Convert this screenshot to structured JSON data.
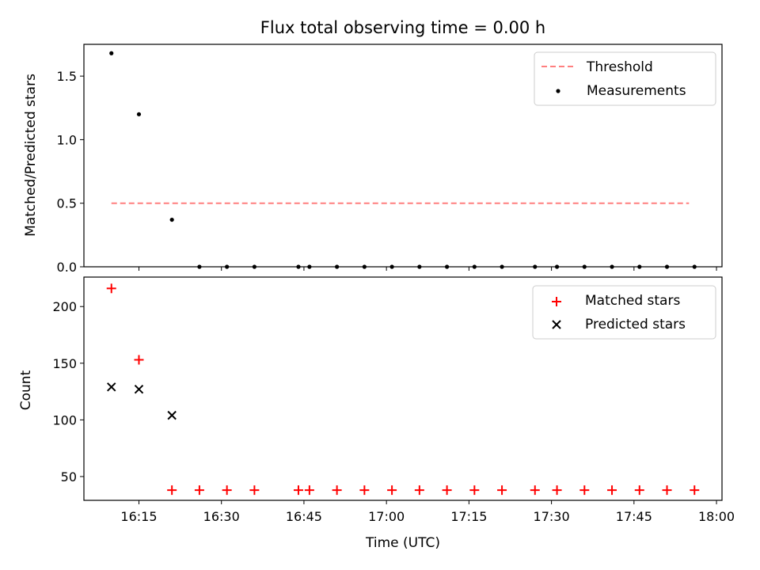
{
  "chart_data": [
    {
      "type": "scatter",
      "title": "Flux total observing time = 0.00 h",
      "ylabel": "Matched/Predicted stars",
      "xlabel": "",
      "x_axis": "time",
      "xlim": [
        "16:05",
        "18:01"
      ],
      "ylim": [
        0,
        1.75
      ],
      "yticks": [
        0.0,
        0.5,
        1.0,
        1.5
      ],
      "ytick_labels": [
        "0.0",
        "0.5",
        "1.0",
        "1.5"
      ],
      "grid": false,
      "legend_position": "top-right",
      "legend": [
        "Threshold",
        "Measurements"
      ],
      "threshold": {
        "name": "Threshold",
        "value": 0.5,
        "x_start": "16:10",
        "x_end": "17:55",
        "color": "#ff7f7f"
      },
      "series": [
        {
          "name": "Measurements",
          "color": "#000000",
          "x": [
            "16:10",
            "16:15",
            "16:21",
            "16:26",
            "16:31",
            "16:36",
            "16:44",
            "16:46",
            "16:51",
            "16:56",
            "17:01",
            "17:06",
            "17:11",
            "17:16",
            "17:21",
            "17:27",
            "17:31",
            "17:36",
            "17:41",
            "17:46",
            "17:51",
            "17:56"
          ],
          "y": [
            1.68,
            1.2,
            0.37,
            0,
            0,
            0,
            0,
            0,
            0,
            0,
            0,
            0,
            0,
            0,
            0,
            0,
            0,
            0,
            0,
            0,
            0,
            0
          ]
        }
      ]
    },
    {
      "type": "scatter",
      "title": "",
      "ylabel": "Count",
      "xlabel": "Time (UTC)",
      "x_axis": "time",
      "xlim": [
        "16:05",
        "18:01"
      ],
      "xticks": [
        "16:15",
        "16:30",
        "16:45",
        "17:00",
        "17:15",
        "17:30",
        "17:45",
        "18:00"
      ],
      "ylim": [
        29,
        226
      ],
      "yticks": [
        50,
        100,
        150,
        200
      ],
      "ytick_labels": [
        "50",
        "100",
        "150",
        "200"
      ],
      "grid": false,
      "legend_position": "top-right",
      "legend": [
        "Matched stars",
        "Predicted stars"
      ],
      "series": [
        {
          "name": "Matched stars",
          "marker": "plus",
          "color": "#ff0000",
          "x": [
            "16:10",
            "16:15",
            "16:21",
            "16:26",
            "16:31",
            "16:36",
            "16:44",
            "16:46",
            "16:51",
            "16:56",
            "17:01",
            "17:06",
            "17:11",
            "17:16",
            "17:21",
            "17:27",
            "17:31",
            "17:36",
            "17:41",
            "17:46",
            "17:51",
            "17:56"
          ],
          "y": [
            216,
            153,
            38,
            38,
            38,
            38,
            38,
            38,
            38,
            38,
            38,
            38,
            38,
            38,
            38,
            38,
            38,
            38,
            38,
            38,
            38,
            38
          ]
        },
        {
          "name": "Predicted stars",
          "marker": "x",
          "color": "#000000",
          "x": [
            "16:10",
            "16:15",
            "16:21"
          ],
          "y": [
            129,
            127,
            104
          ]
        }
      ]
    }
  ]
}
